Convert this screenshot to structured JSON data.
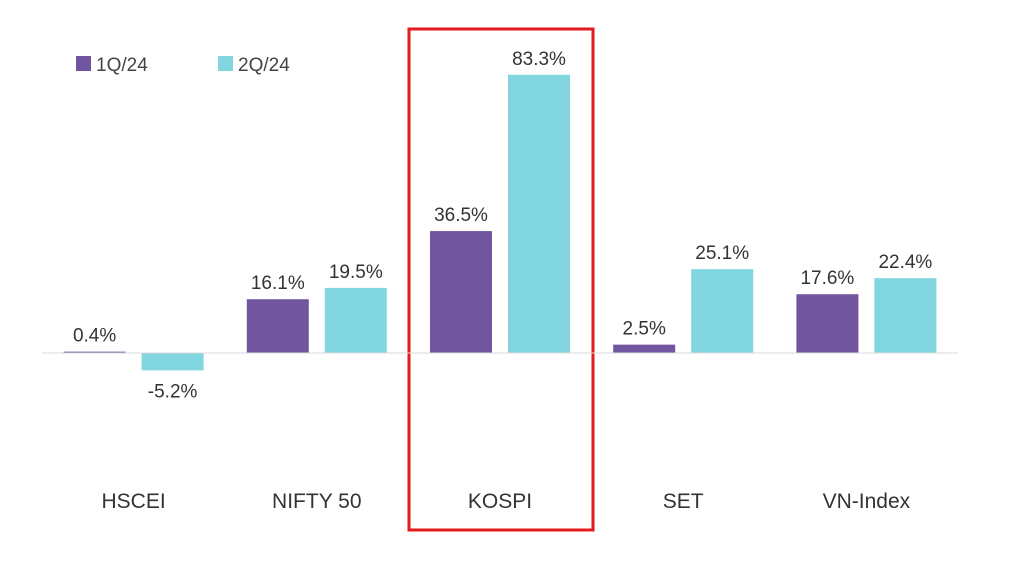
{
  "chart_data": {
    "type": "bar",
    "title": "",
    "xlabel": "",
    "ylabel": "",
    "categories": [
      "HSCEI",
      "NIFTY 50",
      "KOSPI",
      "SET",
      "VN-Index"
    ],
    "series": [
      {
        "name": "1Q/24",
        "color": "#71559e",
        "values": [
          0.4,
          16.1,
          36.5,
          2.5,
          17.6
        ],
        "labels": [
          "0.4%",
          "16.1%",
          "36.5%",
          "2.5%",
          "17.6%"
        ]
      },
      {
        "name": "2Q/24",
        "color": "#82d6e0",
        "values": [
          -5.2,
          19.5,
          83.3,
          25.1,
          22.4
        ],
        "labels": [
          "-5.2%",
          "19.5%",
          "83.3%",
          "25.1%",
          "22.4%"
        ]
      }
    ],
    "ylim": [
      -30,
      90
    ],
    "grid": false,
    "legend": "top-left",
    "highlight": {
      "category": "KOSPI",
      "color": "#e31b1b"
    },
    "baseline_color": "#d9d9d9"
  }
}
